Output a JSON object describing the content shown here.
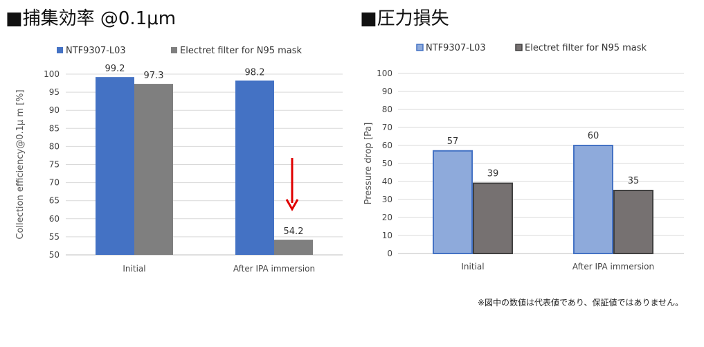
{
  "header": {
    "left_title": "■捕集効率 @0.1μm",
    "right_title": "■圧力損失"
  },
  "footnote": "※図中の数値は代表値であり、保証値ではありません。",
  "colors": {
    "left_s1": "#4472c4",
    "left_s2": "#7f7f7f",
    "right_s1_fill": "#8eaadb",
    "right_s1_stroke": "#4472c4",
    "right_s2_fill": "#767171",
    "right_s2_stroke": "#404040",
    "arrow": "#e00000"
  },
  "chart_data": [
    {
      "type": "bar",
      "title": "",
      "categories": [
        "Initial",
        "After IPA immersion"
      ],
      "series": [
        {
          "name": "NTF9307-L03",
          "values": [
            99.2,
            98.2
          ]
        },
        {
          "name": "Electret filter for N95 mask",
          "values": [
            97.3,
            54.2
          ]
        }
      ],
      "data_labels": [
        [
          "99.2",
          "98.2"
        ],
        [
          "97.3",
          "54.2"
        ]
      ],
      "xlabel": "",
      "ylabel": "Collection efficiency@0.1μ m [%]",
      "ylim": [
        50,
        100
      ],
      "yticks": [
        50,
        55,
        60,
        65,
        70,
        75,
        80,
        85,
        90,
        95,
        100
      ],
      "legend": "top",
      "grid": true,
      "annotation": "red down arrow over After IPA immersion Electret bar"
    },
    {
      "type": "bar",
      "title": "",
      "categories": [
        "Initial",
        "After IPA immersion"
      ],
      "series": [
        {
          "name": "NTF9307-L03",
          "values": [
            57,
            60
          ]
        },
        {
          "name": "Electret filter for N95 mask",
          "values": [
            39,
            35
          ]
        }
      ],
      "data_labels": [
        [
          "57",
          "60"
        ],
        [
          "39",
          "35"
        ]
      ],
      "xlabel": "",
      "ylabel": "Pressure drop [Pa]",
      "ylim": [
        0,
        100
      ],
      "yticks": [
        0,
        10,
        20,
        30,
        40,
        50,
        60,
        70,
        80,
        90,
        100
      ],
      "legend": "top",
      "grid": true
    }
  ]
}
